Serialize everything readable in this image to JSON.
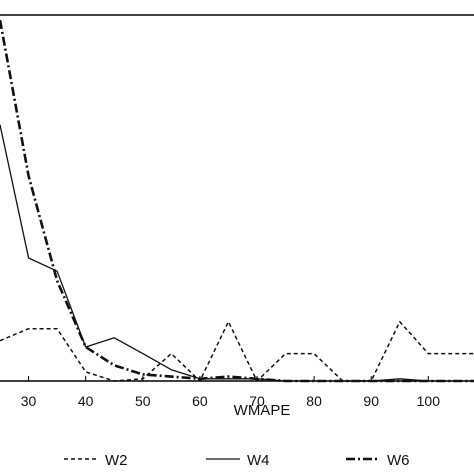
{
  "chart_data": {
    "type": "line",
    "title": "",
    "xlabel": "WMAPE",
    "ylabel": "",
    "xlim": [
      25,
      108
    ],
    "ylim": [
      0,
      1
    ],
    "x_ticks": [
      30,
      40,
      50,
      60,
      70,
      80,
      90,
      100
    ],
    "grid": false,
    "legend_position": "bottom",
    "x": [
      25,
      30,
      35,
      40,
      45,
      50,
      55,
      60,
      65,
      70,
      75,
      80,
      85,
      90,
      95,
      100,
      105,
      108
    ],
    "series": [
      {
        "name": "W2",
        "style": "dotted",
        "values": [
          0.11,
          0.143,
          0.143,
          0.025,
          0.0,
          0.006,
          0.075,
          0.0,
          0.162,
          0.0,
          0.075,
          0.075,
          0.0,
          0.0,
          0.162,
          0.075,
          0.075,
          0.075
        ]
      },
      {
        "name": "W4",
        "style": "solid",
        "values": [
          0.7,
          0.336,
          0.3,
          0.093,
          0.118,
          0.075,
          0.031,
          0.006,
          0.006,
          0.006,
          0.0,
          0.0,
          0.0,
          0.0,
          0.006,
          0.0,
          0.0,
          0.0
        ]
      },
      {
        "name": "W6",
        "style": "dash-dot",
        "values": [
          0.986,
          0.56,
          0.274,
          0.093,
          0.043,
          0.018,
          0.012,
          0.006,
          0.012,
          0.006,
          0.0,
          0.0,
          0.0,
          0.0,
          0.0,
          0.0,
          0.0,
          0.0
        ]
      }
    ],
    "colors": {
      "line": "#111111",
      "axis": "#000000",
      "background": "#ffffff"
    }
  }
}
